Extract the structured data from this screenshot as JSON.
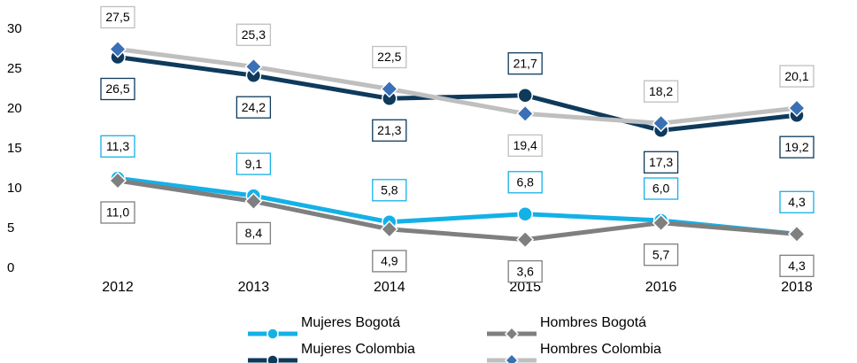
{
  "chart_data": {
    "type": "line",
    "categories": [
      "2012",
      "2013",
      "2014",
      "2015",
      "2016",
      "2018"
    ],
    "ylim": [
      0,
      30
    ],
    "yticks": [
      0,
      5,
      10,
      15,
      20,
      25,
      30
    ],
    "grid": false,
    "series": [
      {
        "name": "Mujeres Bogotá",
        "color": "#14b1e7",
        "marker": "circle",
        "marker_color": "#14b1e7",
        "values": [
          11.3,
          9.1,
          5.8,
          6.8,
          6.0,
          4.3
        ],
        "value_labels": [
          "11,3",
          "9,1",
          "5,8",
          "6,8",
          "6,0",
          "4,3"
        ]
      },
      {
        "name": "Hombres Bogotá",
        "color": "#7f7f7f",
        "marker": "diamond",
        "marker_color": "#7f7f7f",
        "values": [
          11.0,
          8.4,
          4.9,
          3.6,
          5.7,
          4.3
        ],
        "value_labels": [
          "11,0",
          "8,4",
          "4,9",
          "3,6",
          "5,7",
          "4,3"
        ]
      },
      {
        "name": "Mujeres Colombia",
        "color": "#0e3a5c",
        "marker": "circle",
        "marker_color": "#0e3a5c",
        "values": [
          26.5,
          24.2,
          21.3,
          21.7,
          17.3,
          19.2
        ],
        "value_labels": [
          "26,5",
          "24,2",
          "21,3",
          "21,7",
          "17,3",
          "19,2"
        ]
      },
      {
        "name": "Hombres Colombia",
        "color": "#bfbfbf",
        "marker": "diamond",
        "marker_color": "#3a70b5",
        "values": [
          27.5,
          25.3,
          22.5,
          19.4,
          18.2,
          20.1
        ],
        "value_labels": [
          "27,5",
          "25,3",
          "22,5",
          "19,4",
          "18,2",
          "20,1"
        ]
      }
    ]
  }
}
